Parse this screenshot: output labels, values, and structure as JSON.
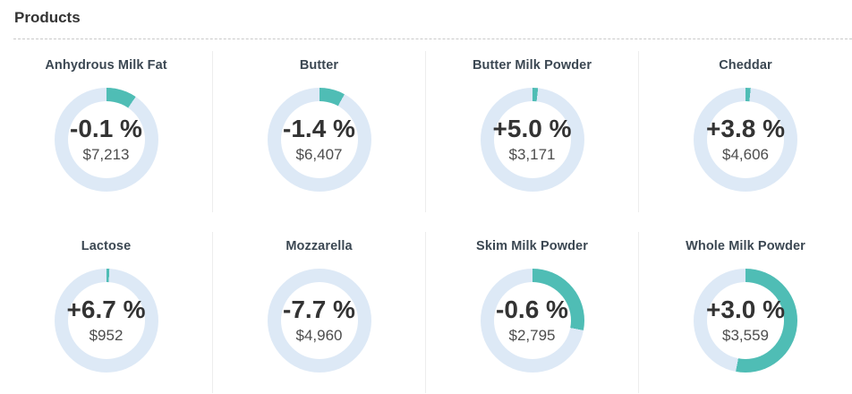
{
  "page": {
    "title": "Products"
  },
  "colors": {
    "accent_teal": "#4fbdb5",
    "ring_blue": "#dde9f6",
    "column_divider": "#ededed",
    "dashed_divider": "#c9c9c9",
    "title_text": "#333333",
    "product_name_text": "#3b4752",
    "percent_text": "#333333",
    "price_text": "#4d4d4d"
  },
  "chart_data": [
    {
      "type": "pie",
      "style": "donut-gauge",
      "label": "Anhydrous Milk Fat",
      "center_text": "-0.1 %",
      "sub_text": "$7,213",
      "change_percent": -0.1,
      "price_usd": 7213,
      "teal_fraction_percent": 9.5,
      "arc_start": "12-o-clock",
      "arc_direction": "clockwise"
    },
    {
      "type": "pie",
      "style": "donut-gauge",
      "label": "Butter",
      "center_text": "-1.4 %",
      "sub_text": "$6,407",
      "change_percent": -1.4,
      "price_usd": 6407,
      "teal_fraction_percent": 8,
      "arc_start": "12-o-clock",
      "arc_direction": "clockwise"
    },
    {
      "type": "pie",
      "style": "donut-gauge",
      "label": "Butter Milk Powder",
      "center_text": "+5.0 %",
      "sub_text": "$3,171",
      "change_percent": 5.0,
      "price_usd": 3171,
      "teal_fraction_percent": 1.7,
      "arc_start": "12-o-clock",
      "arc_direction": "clockwise"
    },
    {
      "type": "pie",
      "style": "donut-gauge",
      "label": "Cheddar",
      "center_text": "+3.8 %",
      "sub_text": "$4,606",
      "change_percent": 3.8,
      "price_usd": 4606,
      "teal_fraction_percent": 1.6,
      "arc_start": "12-o-clock",
      "arc_direction": "clockwise"
    },
    {
      "type": "pie",
      "style": "donut-gauge",
      "label": "Lactose",
      "center_text": "+6.7 %",
      "sub_text": "$952",
      "change_percent": 6.7,
      "price_usd": 952,
      "teal_fraction_percent": 0.9,
      "arc_start": "12-o-clock",
      "arc_direction": "clockwise"
    },
    {
      "type": "pie",
      "style": "donut-gauge",
      "label": "Mozzarella",
      "center_text": "-7.7 %",
      "sub_text": "$4,960",
      "change_percent": -7.7,
      "price_usd": 4960,
      "teal_fraction_percent": 0,
      "arc_start": "12-o-clock",
      "arc_direction": "clockwise"
    },
    {
      "type": "pie",
      "style": "donut-gauge",
      "label": "Skim Milk Powder",
      "center_text": "-0.6 %",
      "sub_text": "$2,795",
      "change_percent": -0.6,
      "price_usd": 2795,
      "teal_fraction_percent": 28,
      "arc_start": "12-o-clock",
      "arc_direction": "clockwise"
    },
    {
      "type": "pie",
      "style": "donut-gauge",
      "label": "Whole Milk Powder",
      "center_text": "+3.0 %",
      "sub_text": "$3,559",
      "change_percent": 3.0,
      "price_usd": 3559,
      "teal_fraction_percent": 53,
      "arc_start": "12-o-clock",
      "arc_direction": "clockwise"
    }
  ]
}
